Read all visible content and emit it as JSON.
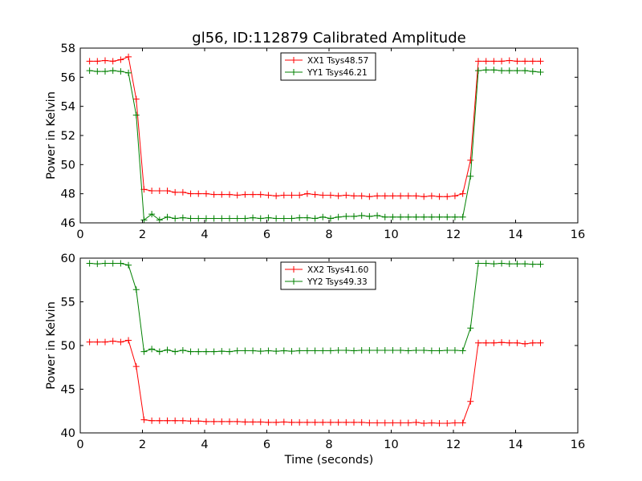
{
  "chart_data": [
    {
      "type": "line",
      "title": "gl56, ID:112879 Calibrated Amplitude",
      "xlabel": "",
      "ylabel": "Power in Kelvin",
      "xlim": [
        0,
        16
      ],
      "ylim": [
        46,
        58
      ],
      "xticks": [
        0,
        2,
        4,
        6,
        8,
        10,
        12,
        14,
        16
      ],
      "yticks": [
        46,
        48,
        50,
        52,
        54,
        56,
        58
      ],
      "legend_position": "top-center",
      "grid": false,
      "marker": "+",
      "x": [
        0.3,
        0.55,
        0.8,
        1.05,
        1.3,
        1.55,
        1.8,
        2.05,
        2.3,
        2.55,
        2.8,
        3.05,
        3.3,
        3.55,
        3.8,
        4.05,
        4.3,
        4.55,
        4.8,
        5.05,
        5.3,
        5.55,
        5.8,
        6.05,
        6.3,
        6.55,
        6.8,
        7.05,
        7.3,
        7.55,
        7.8,
        8.05,
        8.3,
        8.55,
        8.8,
        9.05,
        9.3,
        9.55,
        9.8,
        10.05,
        10.3,
        10.55,
        10.8,
        11.05,
        11.3,
        11.55,
        11.8,
        12.05,
        12.3,
        12.55,
        12.8,
        13.05,
        13.3,
        13.55,
        13.8,
        14.05,
        14.3,
        14.55,
        14.8
      ],
      "series": [
        {
          "name": "XX1 Tsys48.57",
          "color": "#ff0000",
          "values": [
            57.1,
            57.1,
            57.15,
            57.1,
            57.2,
            57.4,
            54.5,
            48.3,
            48.2,
            48.2,
            48.2,
            48.1,
            48.1,
            48.0,
            48.0,
            48.0,
            47.95,
            47.95,
            47.95,
            47.9,
            47.95,
            47.95,
            47.95,
            47.9,
            47.85,
            47.9,
            47.9,
            47.9,
            48.0,
            47.95,
            47.9,
            47.9,
            47.85,
            47.9,
            47.85,
            47.85,
            47.8,
            47.85,
            47.85,
            47.85,
            47.85,
            47.85,
            47.85,
            47.8,
            47.85,
            47.8,
            47.8,
            47.85,
            48.0,
            50.3,
            57.1,
            57.1,
            57.1,
            57.1,
            57.15,
            57.1,
            57.1,
            57.1,
            57.1
          ]
        },
        {
          "name": "YY1 Tsys46.21",
          "color": "#008000",
          "values": [
            56.45,
            56.4,
            56.4,
            56.45,
            56.4,
            56.3,
            53.4,
            46.2,
            46.6,
            46.2,
            46.4,
            46.3,
            46.35,
            46.3,
            46.3,
            46.3,
            46.3,
            46.3,
            46.3,
            46.3,
            46.3,
            46.35,
            46.3,
            46.35,
            46.3,
            46.3,
            46.3,
            46.35,
            46.35,
            46.3,
            46.4,
            46.3,
            46.4,
            46.45,
            46.45,
            46.5,
            46.45,
            46.5,
            46.4,
            46.4,
            46.4,
            46.4,
            46.4,
            46.4,
            46.4,
            46.4,
            46.4,
            46.4,
            46.4,
            49.2,
            56.45,
            56.5,
            56.5,
            56.45,
            56.45,
            56.45,
            56.45,
            56.4,
            56.35
          ]
        }
      ]
    },
    {
      "type": "line",
      "title": "",
      "xlabel": "Time (seconds)",
      "ylabel": "Power in Kelvin",
      "xlim": [
        0,
        16
      ],
      "ylim": [
        40,
        60
      ],
      "xticks": [
        0,
        2,
        4,
        6,
        8,
        10,
        12,
        14,
        16
      ],
      "yticks": [
        40,
        45,
        50,
        55,
        60
      ],
      "legend_position": "top-center",
      "grid": false,
      "marker": "+",
      "x": [
        0.3,
        0.55,
        0.8,
        1.05,
        1.3,
        1.55,
        1.8,
        2.05,
        2.3,
        2.55,
        2.8,
        3.05,
        3.3,
        3.55,
        3.8,
        4.05,
        4.3,
        4.55,
        4.8,
        5.05,
        5.3,
        5.55,
        5.8,
        6.05,
        6.3,
        6.55,
        6.8,
        7.05,
        7.3,
        7.55,
        7.8,
        8.05,
        8.3,
        8.55,
        8.8,
        9.05,
        9.3,
        9.55,
        9.8,
        10.05,
        10.3,
        10.55,
        10.8,
        11.05,
        11.3,
        11.55,
        11.8,
        12.05,
        12.3,
        12.55,
        12.8,
        13.05,
        13.3,
        13.55,
        13.8,
        14.05,
        14.3,
        14.55,
        14.8
      ],
      "series": [
        {
          "name": "XX2 Tsys41.60",
          "color": "#ff0000",
          "values": [
            50.4,
            50.4,
            50.4,
            50.5,
            50.4,
            50.6,
            47.6,
            41.5,
            41.4,
            41.4,
            41.4,
            41.4,
            41.4,
            41.35,
            41.35,
            41.3,
            41.3,
            41.3,
            41.3,
            41.3,
            41.25,
            41.25,
            41.25,
            41.2,
            41.2,
            41.25,
            41.2,
            41.2,
            41.2,
            41.2,
            41.2,
            41.2,
            41.2,
            41.2,
            41.2,
            41.2,
            41.15,
            41.15,
            41.15,
            41.15,
            41.15,
            41.15,
            41.2,
            41.1,
            41.15,
            41.1,
            41.1,
            41.15,
            41.15,
            43.6,
            50.3,
            50.3,
            50.3,
            50.35,
            50.3,
            50.3,
            50.2,
            50.3,
            50.3
          ]
        },
        {
          "name": "YY2 Tsys49.33",
          "color": "#008000",
          "values": [
            59.4,
            59.35,
            59.4,
            59.4,
            59.4,
            59.2,
            56.4,
            49.3,
            49.6,
            49.3,
            49.5,
            49.3,
            49.45,
            49.3,
            49.3,
            49.3,
            49.3,
            49.35,
            49.3,
            49.4,
            49.4,
            49.4,
            49.35,
            49.4,
            49.35,
            49.4,
            49.35,
            49.4,
            49.4,
            49.4,
            49.4,
            49.4,
            49.45,
            49.45,
            49.4,
            49.45,
            49.45,
            49.45,
            49.45,
            49.45,
            49.45,
            49.4,
            49.45,
            49.45,
            49.4,
            49.4,
            49.45,
            49.45,
            49.4,
            52.0,
            59.4,
            59.4,
            59.35,
            59.4,
            59.35,
            59.35,
            59.35,
            59.3,
            59.3
          ]
        }
      ]
    }
  ]
}
